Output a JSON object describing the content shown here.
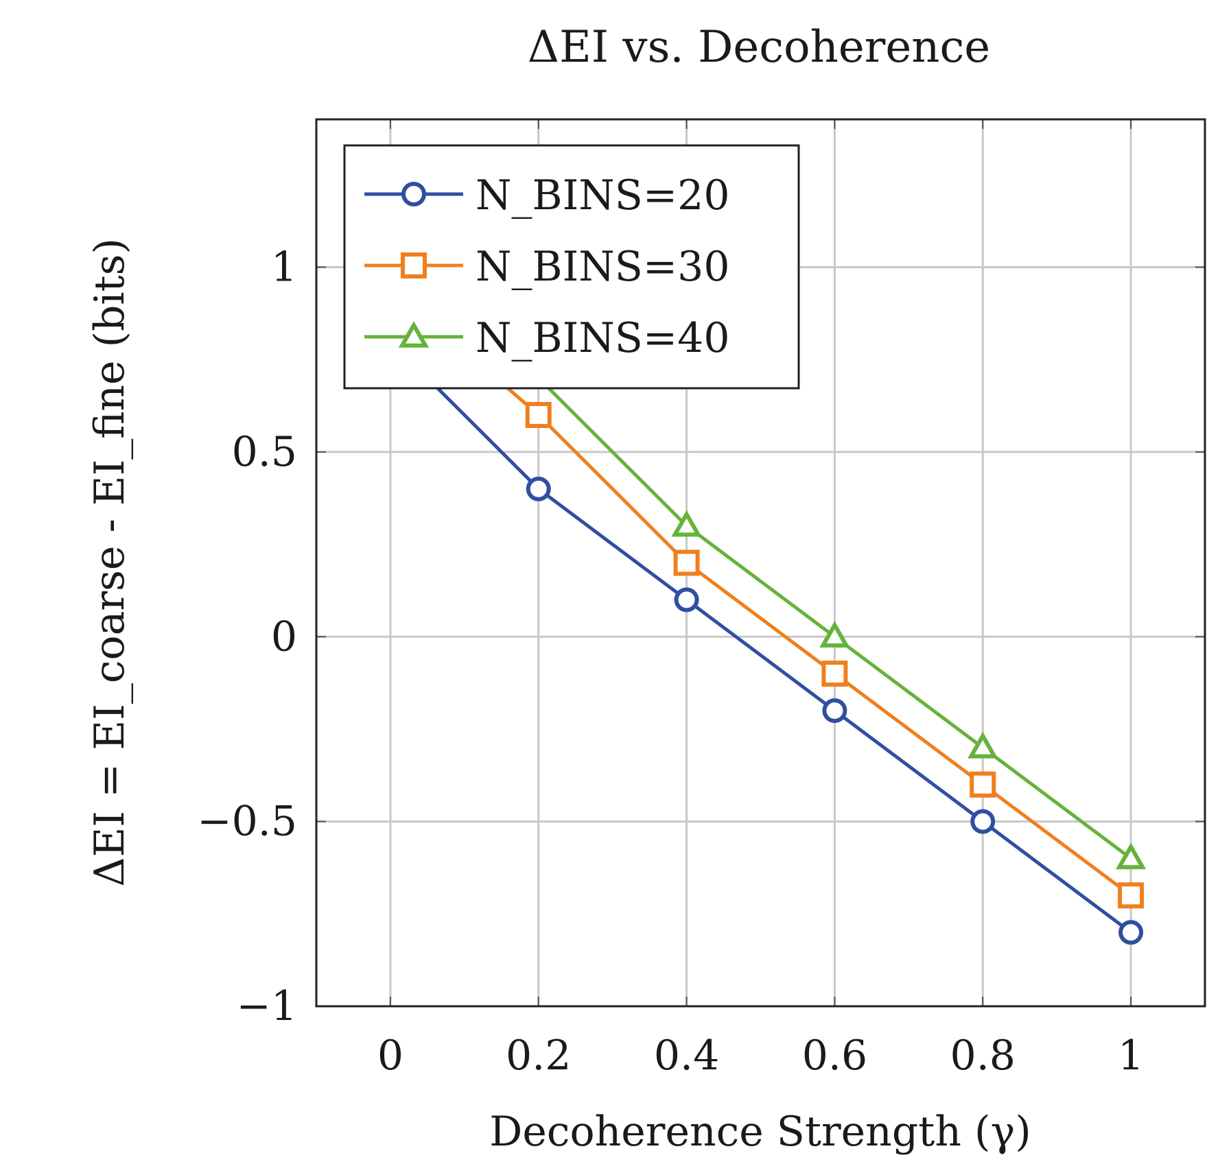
{
  "chart_data": {
    "type": "line",
    "title": "ΔEI vs. Decoherence",
    "xlabel": "Decoherence Strength (γ)",
    "ylabel": "ΔEI = EI_coarse - EI_fine (bits)",
    "xlim": [
      -0.1,
      1.1
    ],
    "ylim": [
      -1,
      1.4
    ],
    "x_ticks": [
      0,
      0.2,
      0.4,
      0.6,
      0.8,
      1
    ],
    "x_tick_labels": [
      "0",
      "0.2",
      "0.4",
      "0.6",
      "0.8",
      "1"
    ],
    "y_ticks": [
      -1,
      -0.5,
      0,
      0.5,
      1
    ],
    "y_tick_labels": [
      "−1",
      "−0.5",
      "0",
      "0.5",
      "1"
    ],
    "grid": true,
    "legend_position": "top-left",
    "x": [
      0,
      0.2,
      0.4,
      0.6,
      0.8,
      1
    ],
    "series": [
      {
        "name": "N_BINS=20",
        "values": [
          0.8,
          0.4,
          0.1,
          -0.2,
          -0.5,
          -0.8
        ],
        "color": "#2f4fa0",
        "marker": "circle"
      },
      {
        "name": "N_BINS=30",
        "values": [
          0.95,
          0.6,
          0.2,
          -0.1,
          -0.4,
          -0.7
        ],
        "color": "#f07f1f",
        "marker": "square"
      },
      {
        "name": "N_BINS=40",
        "values": [
          1.1,
          0.7,
          0.3,
          0.0,
          -0.3,
          -0.6
        ],
        "color": "#66b33b",
        "marker": "triangle"
      }
    ]
  }
}
